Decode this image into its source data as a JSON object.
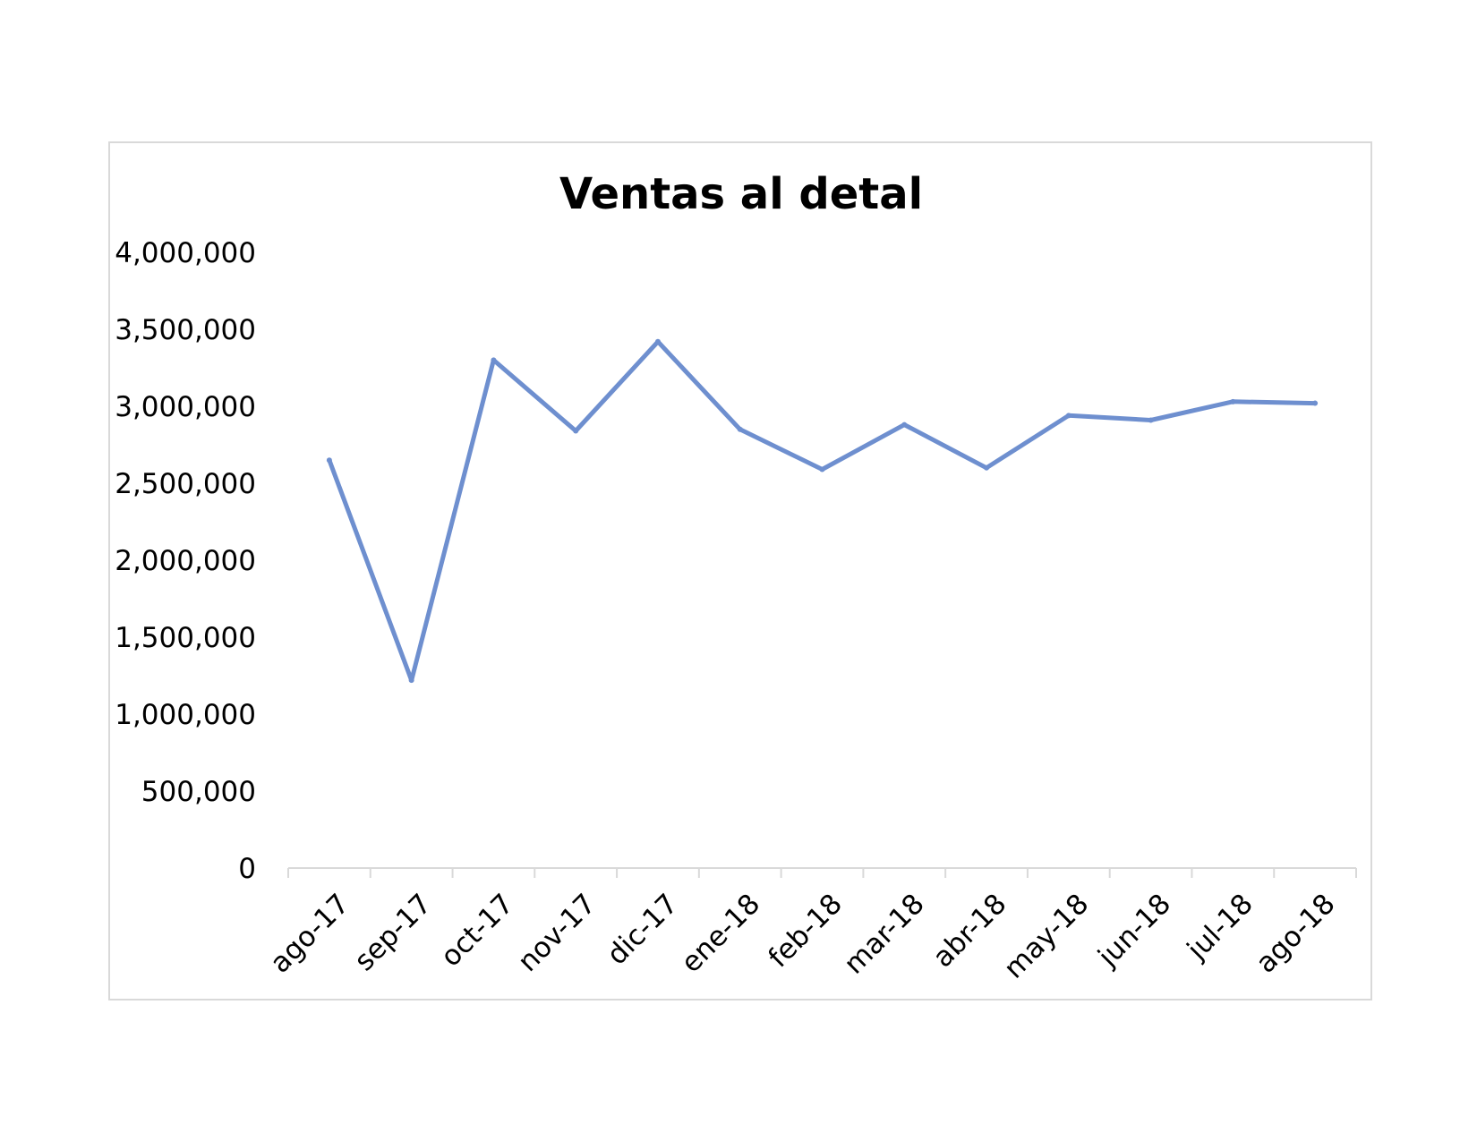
{
  "chart_data": {
    "type": "line",
    "title": "Ventas al detal",
    "xlabel": "",
    "ylabel": "",
    "categories": [
      "ago-17",
      "sep-17",
      "oct-17",
      "nov-17",
      "dic-17",
      "ene-18",
      "feb-18",
      "mar-18",
      "abr-18",
      "may-18",
      "jun-18",
      "jul-18",
      "ago-18"
    ],
    "series": [
      {
        "values": [
          2650000,
          1220000,
          3300000,
          2840000,
          3420000,
          2850000,
          2590000,
          2880000,
          2600000,
          2940000,
          2910000,
          3030000,
          3020000
        ]
      }
    ],
    "y_ticks": [
      "0",
      "500,000",
      "1,000,000",
      "1,500,000",
      "2,000,000",
      "2,500,000",
      "3,000,000",
      "3,500,000",
      "4,000,000"
    ],
    "ylim": [
      0,
      4000000
    ],
    "grid": false,
    "legend": "none",
    "colors": {
      "series": "#6e8fcf",
      "axis": "#d9d9d9",
      "frame": "#d9d9d9"
    }
  }
}
